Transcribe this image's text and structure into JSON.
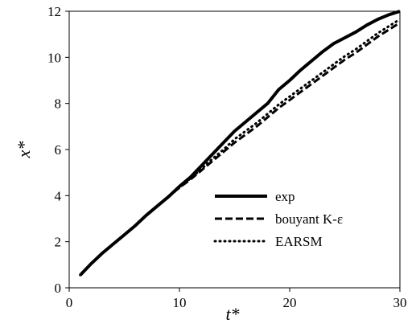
{
  "chart_data": {
    "type": "line",
    "title": "",
    "xlabel": "t*",
    "ylabel": "x*",
    "xlim": [
      0,
      30
    ],
    "ylim": [
      0,
      12
    ],
    "xticks": [
      "0",
      "10",
      "20",
      "30"
    ],
    "yticks": [
      "0",
      "2",
      "4",
      "6",
      "8",
      "10",
      "12"
    ],
    "grid": false,
    "legend_position": "bottom-right",
    "series": [
      {
        "name": "exp",
        "style": "solid",
        "color": "#000000",
        "x": [
          1,
          2,
          3,
          4,
          5,
          6,
          7,
          8,
          9,
          10,
          11,
          12,
          13,
          14,
          15,
          16,
          17,
          18,
          19,
          20,
          21,
          22,
          23,
          24,
          25,
          26,
          27,
          28,
          29,
          30
        ],
        "y": [
          0.55,
          1.05,
          1.5,
          1.9,
          2.3,
          2.7,
          3.15,
          3.55,
          3.95,
          4.4,
          4.8,
          5.3,
          5.8,
          6.3,
          6.8,
          7.2,
          7.6,
          8.0,
          8.6,
          9.0,
          9.45,
          9.85,
          10.25,
          10.6,
          10.85,
          11.1,
          11.4,
          11.65,
          11.85,
          12.0
        ]
      },
      {
        "name": "bouyant K-ε",
        "style": "dashed",
        "color": "#000000",
        "x": [
          1,
          2,
          3,
          4,
          5,
          6,
          7,
          8,
          9,
          10,
          11,
          12,
          13,
          14,
          15,
          16,
          17,
          18,
          19,
          20,
          21,
          22,
          23,
          24,
          25,
          26,
          27,
          28,
          29,
          30
        ],
        "y": [
          0.55,
          1.05,
          1.5,
          1.9,
          2.3,
          2.7,
          3.15,
          3.55,
          3.95,
          4.35,
          4.7,
          5.1,
          5.5,
          5.9,
          6.3,
          6.65,
          7.0,
          7.4,
          7.8,
          8.15,
          8.5,
          8.85,
          9.2,
          9.55,
          9.9,
          10.2,
          10.55,
          10.9,
          11.2,
          11.5
        ]
      },
      {
        "name": "EARSM",
        "style": "dotted",
        "color": "#000000",
        "x": [
          1,
          2,
          3,
          4,
          5,
          6,
          7,
          8,
          9,
          10,
          11,
          12,
          13,
          14,
          15,
          16,
          17,
          18,
          19,
          20,
          21,
          22,
          23,
          24,
          25,
          26,
          27,
          28,
          29,
          30
        ],
        "y": [
          0.55,
          1.05,
          1.5,
          1.9,
          2.3,
          2.7,
          3.15,
          3.55,
          3.95,
          4.35,
          4.75,
          5.15,
          5.6,
          6.0,
          6.45,
          6.8,
          7.15,
          7.55,
          7.95,
          8.3,
          8.65,
          9.0,
          9.35,
          9.7,
          10.05,
          10.35,
          10.7,
          11.05,
          11.35,
          11.65
        ]
      }
    ]
  }
}
